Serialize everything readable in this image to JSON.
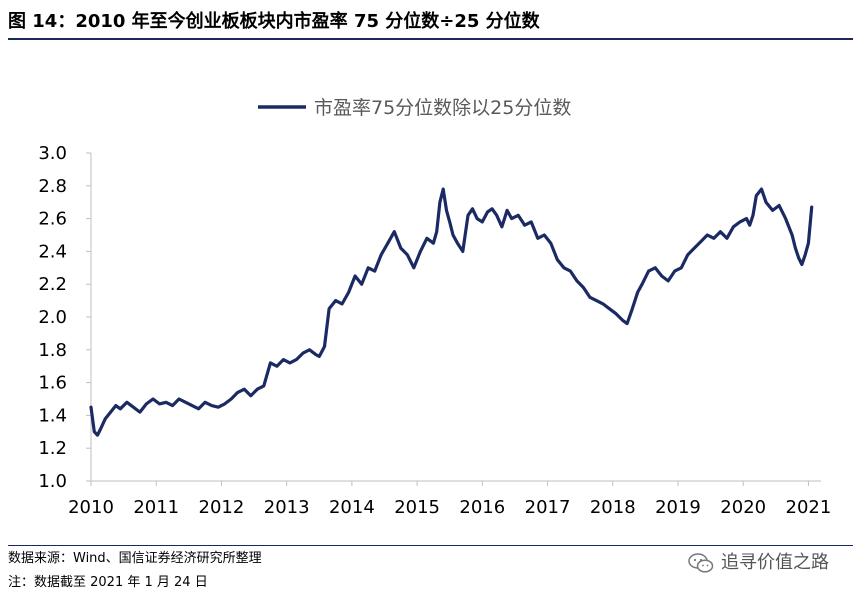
{
  "figure": {
    "title": "图 14：2010 年至今创业板板块内市盈率 75 分位数÷25 分位数",
    "source": "数据来源：Wind、国信证券经济研究所整理",
    "note": "注：数据截至 2021 年 1 月 24 日",
    "brand": "追寻价值之路",
    "brand_icon": "wechat-icon"
  },
  "colors": {
    "line": "#1b2a63",
    "rule": "#1a2a5a"
  },
  "chart_data": {
    "type": "line",
    "title": "",
    "xlabel": "",
    "ylabel": "",
    "legend": "top-center",
    "grid": false,
    "xlim": [
      2010.0,
      2021.07
    ],
    "ylim": [
      1.0,
      3.0
    ],
    "y_ticks": [
      "1.0",
      "1.2",
      "1.4",
      "1.6",
      "1.8",
      "2.0",
      "2.2",
      "2.4",
      "2.6",
      "2.8",
      "3.0"
    ],
    "x_ticks": [
      "2010",
      "2011",
      "2012",
      "2013",
      "2014",
      "2015",
      "2016",
      "2017",
      "2018",
      "2019",
      "2020",
      "2021"
    ],
    "series": [
      {
        "name": "市盈率75分位数除以25分位数",
        "x": [
          2010.0,
          2010.05,
          2010.1,
          2010.15,
          2010.22,
          2010.3,
          2010.38,
          2010.45,
          2010.55,
          2010.65,
          2010.75,
          2010.85,
          2010.95,
          2011.05,
          2011.15,
          2011.25,
          2011.35,
          2011.45,
          2011.55,
          2011.65,
          2011.75,
          2011.85,
          2011.95,
          2012.05,
          2012.15,
          2012.25,
          2012.35,
          2012.45,
          2012.55,
          2012.65,
          2012.75,
          2012.85,
          2012.95,
          2013.05,
          2013.15,
          2013.25,
          2013.35,
          2013.45,
          2013.5,
          2013.58,
          2013.65,
          2013.75,
          2013.85,
          2013.95,
          2014.05,
          2014.15,
          2014.25,
          2014.35,
          2014.45,
          2014.55,
          2014.65,
          2014.75,
          2014.85,
          2014.95,
          2015.05,
          2015.15,
          2015.25,
          2015.3,
          2015.35,
          2015.4,
          2015.45,
          2015.5,
          2015.55,
          2015.62,
          2015.7,
          2015.78,
          2015.85,
          2015.92,
          2016.0,
          2016.08,
          2016.15,
          2016.22,
          2016.3,
          2016.38,
          2016.45,
          2016.55,
          2016.65,
          2016.75,
          2016.85,
          2016.95,
          2017.05,
          2017.15,
          2017.25,
          2017.35,
          2017.45,
          2017.55,
          2017.65,
          2017.75,
          2017.85,
          2017.95,
          2018.05,
          2018.15,
          2018.22,
          2018.3,
          2018.38,
          2018.45,
          2018.55,
          2018.65,
          2018.75,
          2018.85,
          2018.95,
          2019.05,
          2019.15,
          2019.25,
          2019.35,
          2019.45,
          2019.55,
          2019.65,
          2019.75,
          2019.85,
          2019.95,
          2020.05,
          2020.1,
          2020.15,
          2020.2,
          2020.28,
          2020.35,
          2020.45,
          2020.55,
          2020.65,
          2020.75,
          2020.8,
          2020.85,
          2020.9,
          2020.95,
          2021.0,
          2021.05
        ],
        "y": [
          1.45,
          1.3,
          1.28,
          1.32,
          1.38,
          1.42,
          1.46,
          1.44,
          1.48,
          1.45,
          1.42,
          1.47,
          1.5,
          1.47,
          1.48,
          1.46,
          1.5,
          1.48,
          1.46,
          1.44,
          1.48,
          1.46,
          1.45,
          1.47,
          1.5,
          1.54,
          1.56,
          1.52,
          1.56,
          1.58,
          1.72,
          1.7,
          1.74,
          1.72,
          1.74,
          1.78,
          1.8,
          1.77,
          1.76,
          1.82,
          2.05,
          2.1,
          2.08,
          2.15,
          2.25,
          2.2,
          2.3,
          2.28,
          2.38,
          2.45,
          2.52,
          2.42,
          2.38,
          2.3,
          2.4,
          2.48,
          2.45,
          2.52,
          2.7,
          2.78,
          2.65,
          2.58,
          2.5,
          2.45,
          2.4,
          2.62,
          2.66,
          2.6,
          2.58,
          2.64,
          2.66,
          2.62,
          2.55,
          2.65,
          2.6,
          2.62,
          2.56,
          2.58,
          2.48,
          2.5,
          2.45,
          2.35,
          2.3,
          2.28,
          2.22,
          2.18,
          2.12,
          2.1,
          2.08,
          2.05,
          2.02,
          1.98,
          1.96,
          2.05,
          2.15,
          2.2,
          2.28,
          2.3,
          2.25,
          2.22,
          2.28,
          2.3,
          2.38,
          2.42,
          2.46,
          2.5,
          2.48,
          2.52,
          2.48,
          2.55,
          2.58,
          2.6,
          2.56,
          2.62,
          2.74,
          2.78,
          2.7,
          2.65,
          2.68,
          2.6,
          2.5,
          2.42,
          2.36,
          2.32,
          2.38,
          2.45,
          2.67
        ]
      }
    ]
  }
}
